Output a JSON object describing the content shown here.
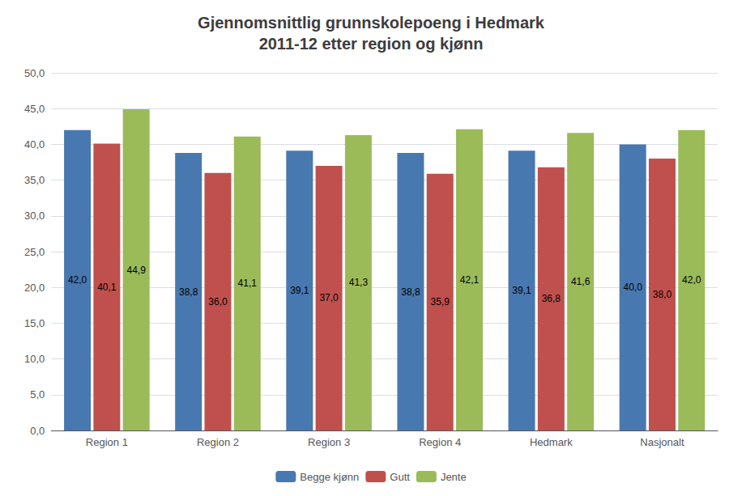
{
  "chart_data": {
    "type": "bar",
    "title": "Gjennomsnittlig grunnskolepoeng i Hedmark\n2011-12 etter region og kjønn",
    "categories": [
      "Region 1",
      "Region 2",
      "Region 3",
      "Region 4",
      "Hedmark",
      "Nasjonalt"
    ],
    "series": [
      {
        "name": "Begge kjønn",
        "color": "#4878B0",
        "values": [
          42.0,
          38.8,
          39.1,
          38.8,
          39.1,
          40.0
        ],
        "value_labels": [
          "42,0",
          "38,8",
          "39,1",
          "38,8",
          "39,1",
          "40,0"
        ]
      },
      {
        "name": "Gutt",
        "color": "#C0504D",
        "values": [
          40.1,
          36.0,
          37.0,
          35.9,
          36.8,
          38.0
        ],
        "value_labels": [
          "40,1",
          "36,0",
          "37,0",
          "35,9",
          "36,8",
          "38,0"
        ]
      },
      {
        "name": "Jente",
        "color": "#9BBB59",
        "values": [
          44.9,
          41.1,
          41.3,
          42.1,
          41.6,
          42.0
        ],
        "value_labels": [
          "44,9",
          "41,1",
          "41,3",
          "42,1",
          "41,6",
          "42,0"
        ]
      }
    ],
    "ylim": [
      0,
      50
    ],
    "yticks": [
      {
        "value": 0,
        "label": "0,0"
      },
      {
        "value": 5,
        "label": "5,0"
      },
      {
        "value": 10,
        "label": "10,0"
      },
      {
        "value": 15,
        "label": "15,0"
      },
      {
        "value": 20,
        "label": "20,0"
      },
      {
        "value": 25,
        "label": "25,0"
      },
      {
        "value": 30,
        "label": "30,0"
      },
      {
        "value": 35,
        "label": "35,0"
      },
      {
        "value": 40,
        "label": "40,0"
      },
      {
        "value": 45,
        "label": "45,0"
      },
      {
        "value": 50,
        "label": "50,0"
      }
    ],
    "grid": true,
    "legend": "lower center",
    "data_labels": true
  }
}
